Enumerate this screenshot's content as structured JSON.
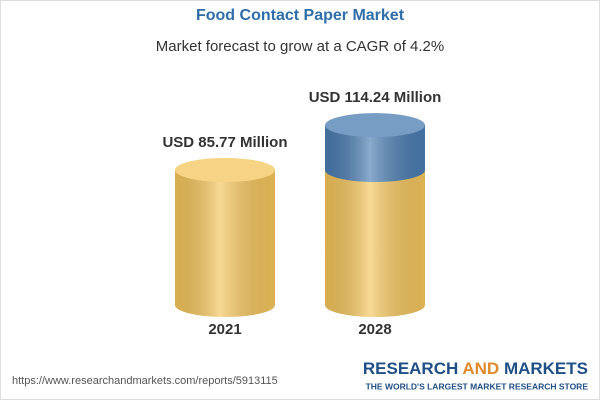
{
  "chart_data": {
    "type": "cylinder",
    "title": "Food Contact Paper Market",
    "subtitle": "Market forecast to grow at a CAGR of 4.2%",
    "categories": [
      "2021",
      "2028"
    ],
    "values": [
      85.77,
      114.24
    ],
    "value_labels": [
      "USD 85.77 Million",
      "USD 114.24 Million"
    ],
    "colors": {
      "base": "#f5c65c",
      "growth": "#4a7db2"
    }
  },
  "footer": {
    "url": "https://www.researchandmarkets.com/reports/5913115",
    "brand": [
      "RESEARCH",
      "AND",
      "MARKETS"
    ],
    "tagline": "THE WORLD'S LARGEST MARKET RESEARCH STORE"
  }
}
